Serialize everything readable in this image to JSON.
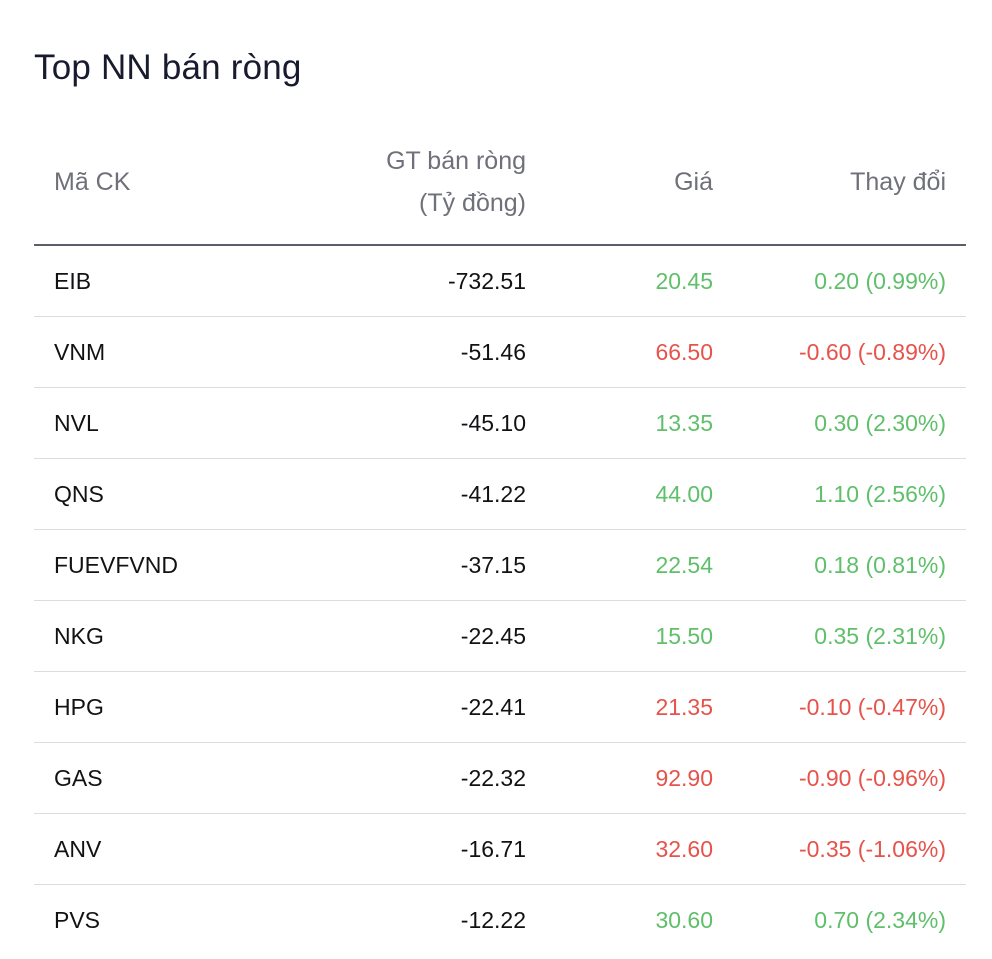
{
  "title": "Top NN bán ròng",
  "colors": {
    "up": "#5fbf6a",
    "down": "#e5534b"
  },
  "headers": {
    "symbol": "Mã CK",
    "value_line1": "GT bán ròng",
    "value_line2": "(Tỷ đồng)",
    "price": "Giá",
    "change": "Thay đổi"
  },
  "rows": [
    {
      "symbol": "EIB",
      "value": "-732.51",
      "price": "20.45",
      "change": "0.20 (0.99%)",
      "direction": "up"
    },
    {
      "symbol": "VNM",
      "value": "-51.46",
      "price": "66.50",
      "change": "-0.60 (-0.89%)",
      "direction": "down"
    },
    {
      "symbol": "NVL",
      "value": "-45.10",
      "price": "13.35",
      "change": "0.30 (2.30%)",
      "direction": "up"
    },
    {
      "symbol": "QNS",
      "value": "-41.22",
      "price": "44.00",
      "change": "1.10 (2.56%)",
      "direction": "up"
    },
    {
      "symbol": "FUEVFVND",
      "value": "-37.15",
      "price": "22.54",
      "change": "0.18 (0.81%)",
      "direction": "up"
    },
    {
      "symbol": "NKG",
      "value": "-22.45",
      "price": "15.50",
      "change": "0.35 (2.31%)",
      "direction": "up"
    },
    {
      "symbol": "HPG",
      "value": "-22.41",
      "price": "21.35",
      "change": "-0.10 (-0.47%)",
      "direction": "down"
    },
    {
      "symbol": "GAS",
      "value": "-22.32",
      "price": "92.90",
      "change": "-0.90 (-0.96%)",
      "direction": "down"
    },
    {
      "symbol": "ANV",
      "value": "-16.71",
      "price": "32.60",
      "change": "-0.35 (-1.06%)",
      "direction": "down"
    },
    {
      "symbol": "PVS",
      "value": "-12.22",
      "price": "30.60",
      "change": "0.70 (2.34%)",
      "direction": "up"
    }
  ]
}
